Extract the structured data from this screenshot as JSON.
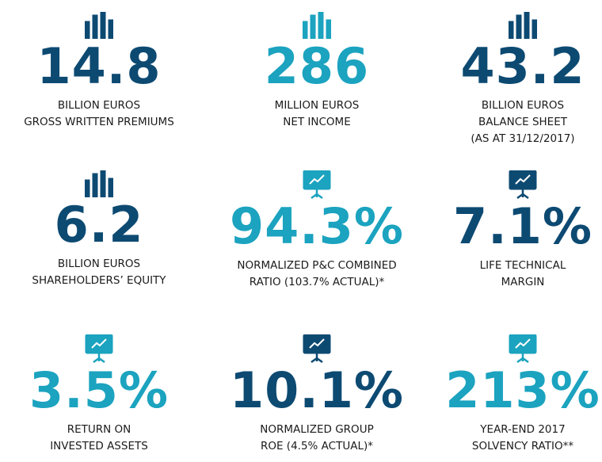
{
  "tiles": [
    {
      "value": "14.8",
      "lines": [
        "BILLION EUROS",
        "GROSS WRITTEN PREMIUMS"
      ]
    },
    {
      "value": "286",
      "lines": [
        "MILLION EUROS",
        "NET INCOME"
      ]
    },
    {
      "value": "43.2",
      "lines": [
        "BILLION EUROS",
        "BALANCE SHEET",
        "(AS AT 31/12/2017)"
      ]
    },
    {
      "value": "6.2",
      "lines": [
        "BILLION EUROS",
        "SHAREHOLDERS’ EQUITY"
      ]
    },
    {
      "value": "94.3%",
      "lines": [
        "NORMALIZED P&C COMBINED",
        "RATIO (103.7% ACTUAL)*"
      ]
    },
    {
      "value": "7.1%",
      "lines": [
        "LIFE TECHNICAL",
        "MARGIN"
      ]
    },
    {
      "value": "3.5%",
      "lines": [
        "RETURN ON",
        "INVESTED ASSETS"
      ]
    },
    {
      "value": "10.1%",
      "lines": [
        "NORMALIZED GROUP",
        "ROE (4.5% ACTUAL)*"
      ]
    },
    {
      "value": "213%",
      "lines": [
        "YEAR-END 2017",
        "SOLVENCY RATIO**"
      ]
    }
  ]
}
